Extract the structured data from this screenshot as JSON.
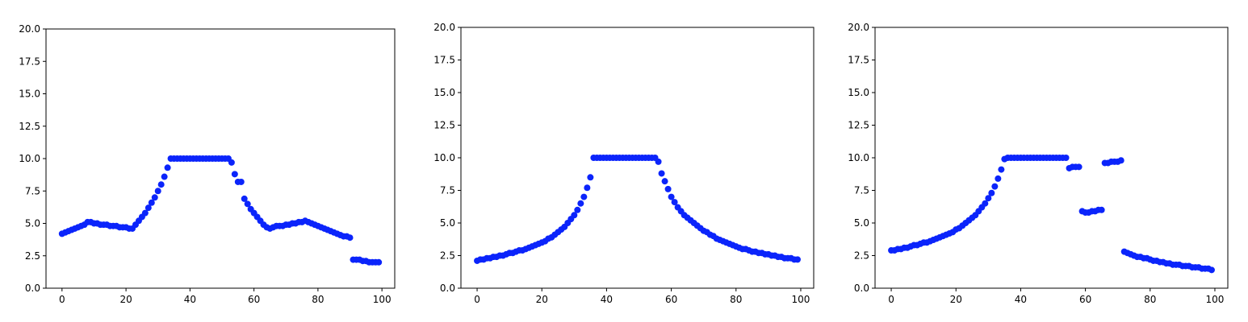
{
  "chart_data": [
    {
      "type": "scatter",
      "title": "",
      "xlabel": "",
      "ylabel": "",
      "xlim": [
        -5,
        104
      ],
      "ylim": [
        0,
        20
      ],
      "xticks": [
        0,
        20,
        40,
        60,
        80,
        100
      ],
      "yticks": [
        0.0,
        2.5,
        5.0,
        7.5,
        10.0,
        12.5,
        15.0,
        17.5,
        20.0
      ],
      "ytick_labels": [
        "0.0",
        "2.5",
        "5.0",
        "7.5",
        "10.0",
        "12.5",
        "15.0",
        "17.5",
        "20.0"
      ],
      "xtick_labels": [
        "0",
        "20",
        "40",
        "60",
        "80",
        "100"
      ],
      "grid": false,
      "point_color": "#0b24fb",
      "x": [
        0,
        1,
        2,
        3,
        4,
        5,
        6,
        7,
        8,
        9,
        10,
        11,
        12,
        13,
        14,
        15,
        16,
        17,
        18,
        19,
        20,
        21,
        22,
        23,
        24,
        25,
        26,
        27,
        28,
        29,
        30,
        31,
        32,
        33,
        34,
        35,
        36,
        37,
        38,
        39,
        40,
        41,
        42,
        43,
        44,
        45,
        46,
        47,
        48,
        49,
        50,
        51,
        52,
        53,
        54,
        55,
        56,
        57,
        58,
        59,
        60,
        61,
        62,
        63,
        64,
        65,
        66,
        67,
        68,
        69,
        70,
        71,
        72,
        73,
        74,
        75,
        76,
        77,
        78,
        79,
        80,
        81,
        82,
        83,
        84,
        85,
        86,
        87,
        88,
        89,
        90,
        91,
        92,
        93,
        94,
        95,
        96,
        97,
        98,
        99
      ],
      "y": [
        4.2,
        4.3,
        4.4,
        4.5,
        4.6,
        4.7,
        4.8,
        4.9,
        5.1,
        5.1,
        5.0,
        5.0,
        4.9,
        4.9,
        4.9,
        4.8,
        4.8,
        4.8,
        4.7,
        4.7,
        4.7,
        4.6,
        4.6,
        4.9,
        5.2,
        5.5,
        5.8,
        6.2,
        6.6,
        7.0,
        7.5,
        8.0,
        8.6,
        9.3,
        10.0,
        10.0,
        10.0,
        10.0,
        10.0,
        10.0,
        10.0,
        10.0,
        10.0,
        10.0,
        10.0,
        10.0,
        10.0,
        10.0,
        10.0,
        10.0,
        10.0,
        10.0,
        10.0,
        9.7,
        8.8,
        8.2,
        8.2,
        6.9,
        6.5,
        6.1,
        5.8,
        5.5,
        5.2,
        4.9,
        4.7,
        4.6,
        4.7,
        4.8,
        4.8,
        4.8,
        4.9,
        4.9,
        5.0,
        5.0,
        5.1,
        5.1,
        5.2,
        5.1,
        5.0,
        4.9,
        4.8,
        4.7,
        4.6,
        4.5,
        4.4,
        4.3,
        4.2,
        4.1,
        4.0,
        4.0,
        3.9,
        2.2,
        2.2,
        2.2,
        2.1,
        2.1,
        2.0,
        2.0,
        2.0,
        2.0
      ]
    },
    {
      "type": "scatter",
      "title": "",
      "xlabel": "",
      "ylabel": "",
      "xlim": [
        -5,
        104
      ],
      "ylim": [
        0,
        20
      ],
      "xticks": [
        0,
        20,
        40,
        60,
        80,
        100
      ],
      "yticks": [
        0.0,
        2.5,
        5.0,
        7.5,
        10.0,
        12.5,
        15.0,
        17.5,
        20.0
      ],
      "ytick_labels": [
        "0.0",
        "2.5",
        "5.0",
        "7.5",
        "10.0",
        "12.5",
        "15.0",
        "17.5",
        "20.0"
      ],
      "xtick_labels": [
        "0",
        "20",
        "40",
        "60",
        "80",
        "100"
      ],
      "grid": false,
      "point_color": "#0b24fb",
      "x": [
        0,
        1,
        2,
        3,
        4,
        5,
        6,
        7,
        8,
        9,
        10,
        11,
        12,
        13,
        14,
        15,
        16,
        17,
        18,
        19,
        20,
        21,
        22,
        23,
        24,
        25,
        26,
        27,
        28,
        29,
        30,
        31,
        32,
        33,
        34,
        35,
        36,
        37,
        38,
        39,
        40,
        41,
        42,
        43,
        44,
        45,
        46,
        47,
        48,
        49,
        50,
        51,
        52,
        53,
        54,
        55,
        56,
        57,
        58,
        59,
        60,
        61,
        62,
        63,
        64,
        65,
        66,
        67,
        68,
        69,
        70,
        71,
        72,
        73,
        74,
        75,
        76,
        77,
        78,
        79,
        80,
        81,
        82,
        83,
        84,
        85,
        86,
        87,
        88,
        89,
        90,
        91,
        92,
        93,
        94,
        95,
        96,
        97,
        98,
        99
      ],
      "y": [
        2.1,
        2.2,
        2.2,
        2.3,
        2.3,
        2.4,
        2.4,
        2.5,
        2.5,
        2.6,
        2.7,
        2.7,
        2.8,
        2.9,
        2.9,
        3.0,
        3.1,
        3.2,
        3.3,
        3.4,
        3.5,
        3.6,
        3.8,
        3.9,
        4.1,
        4.3,
        4.5,
        4.7,
        5.0,
        5.3,
        5.6,
        6.0,
        6.5,
        7.0,
        7.7,
        8.5,
        10.0,
        10.0,
        10.0,
        10.0,
        10.0,
        10.0,
        10.0,
        10.0,
        10.0,
        10.0,
        10.0,
        10.0,
        10.0,
        10.0,
        10.0,
        10.0,
        10.0,
        10.0,
        10.0,
        10.0,
        9.7,
        8.8,
        8.2,
        7.6,
        7.0,
        6.6,
        6.2,
        5.9,
        5.6,
        5.4,
        5.2,
        5.0,
        4.8,
        4.6,
        4.4,
        4.3,
        4.1,
        4.0,
        3.8,
        3.7,
        3.6,
        3.5,
        3.4,
        3.3,
        3.2,
        3.1,
        3.0,
        3.0,
        2.9,
        2.8,
        2.8,
        2.7,
        2.7,
        2.6,
        2.6,
        2.5,
        2.5,
        2.4,
        2.4,
        2.3,
        2.3,
        2.3,
        2.2,
        2.2
      ]
    },
    {
      "type": "scatter",
      "title": "",
      "xlabel": "",
      "ylabel": "",
      "xlim": [
        -5,
        104
      ],
      "ylim": [
        0,
        20
      ],
      "xticks": [
        0,
        20,
        40,
        60,
        80,
        100
      ],
      "yticks": [
        0.0,
        2.5,
        5.0,
        7.5,
        10.0,
        12.5,
        15.0,
        17.5,
        20.0
      ],
      "ytick_labels": [
        "0.0",
        "2.5",
        "5.0",
        "7.5",
        "10.0",
        "12.5",
        "15.0",
        "17.5",
        "20.0"
      ],
      "xtick_labels": [
        "0",
        "20",
        "40",
        "60",
        "80",
        "100"
      ],
      "grid": false,
      "point_color": "#0b24fb",
      "x": [
        0,
        1,
        2,
        3,
        4,
        5,
        6,
        7,
        8,
        9,
        10,
        11,
        12,
        13,
        14,
        15,
        16,
        17,
        18,
        19,
        20,
        21,
        22,
        23,
        24,
        25,
        26,
        27,
        28,
        29,
        30,
        31,
        32,
        33,
        34,
        35,
        36,
        37,
        38,
        39,
        40,
        41,
        42,
        43,
        44,
        45,
        46,
        47,
        48,
        49,
        50,
        51,
        52,
        53,
        54,
        55,
        56,
        57,
        58,
        59,
        60,
        61,
        62,
        63,
        64,
        65,
        66,
        67,
        68,
        69,
        70,
        71,
        72,
        73,
        74,
        75,
        76,
        77,
        78,
        79,
        80,
        81,
        82,
        83,
        84,
        85,
        86,
        87,
        88,
        89,
        90,
        91,
        92,
        93,
        94,
        95,
        96,
        97,
        98,
        99
      ],
      "y": [
        2.9,
        2.9,
        3.0,
        3.0,
        3.1,
        3.1,
        3.2,
        3.3,
        3.3,
        3.4,
        3.5,
        3.5,
        3.6,
        3.7,
        3.8,
        3.9,
        4.0,
        4.1,
        4.2,
        4.3,
        4.5,
        4.6,
        4.8,
        5.0,
        5.2,
        5.4,
        5.6,
        5.9,
        6.2,
        6.5,
        6.9,
        7.3,
        7.8,
        8.4,
        9.1,
        9.9,
        10.0,
        10.0,
        10.0,
        10.0,
        10.0,
        10.0,
        10.0,
        10.0,
        10.0,
        10.0,
        10.0,
        10.0,
        10.0,
        10.0,
        10.0,
        10.0,
        10.0,
        10.0,
        10.0,
        9.2,
        9.3,
        9.3,
        9.3,
        5.9,
        5.8,
        5.8,
        5.9,
        5.9,
        6.0,
        6.0,
        9.6,
        9.6,
        9.7,
        9.7,
        9.7,
        9.8,
        2.8,
        2.7,
        2.6,
        2.5,
        2.4,
        2.4,
        2.3,
        2.3,
        2.2,
        2.1,
        2.1,
        2.0,
        2.0,
        1.9,
        1.9,
        1.8,
        1.8,
        1.8,
        1.7,
        1.7,
        1.7,
        1.6,
        1.6,
        1.6,
        1.5,
        1.5,
        1.5,
        1.4
      ]
    }
  ]
}
